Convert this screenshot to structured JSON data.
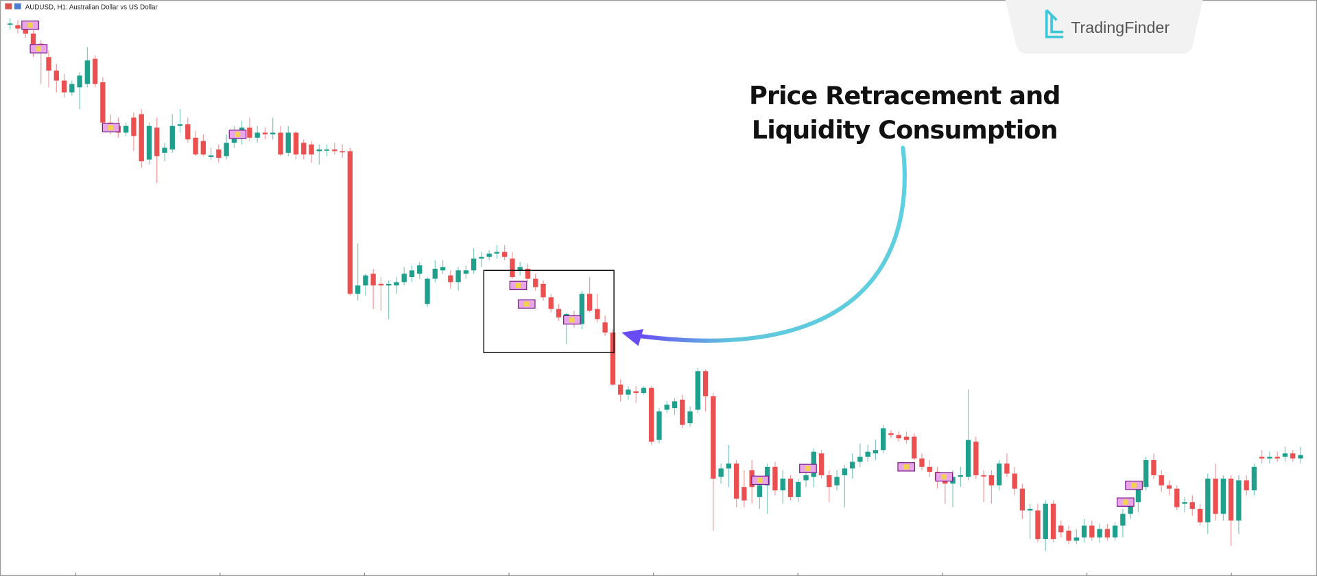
{
  "header": {
    "title": "AUDUSD, H1:  Australian Dollar vs US Dollar"
  },
  "logo": {
    "text": "TradingFinder"
  },
  "annotation": {
    "lines": [
      "Price Retracement and",
      "Liquidity Consumption"
    ]
  }
}
